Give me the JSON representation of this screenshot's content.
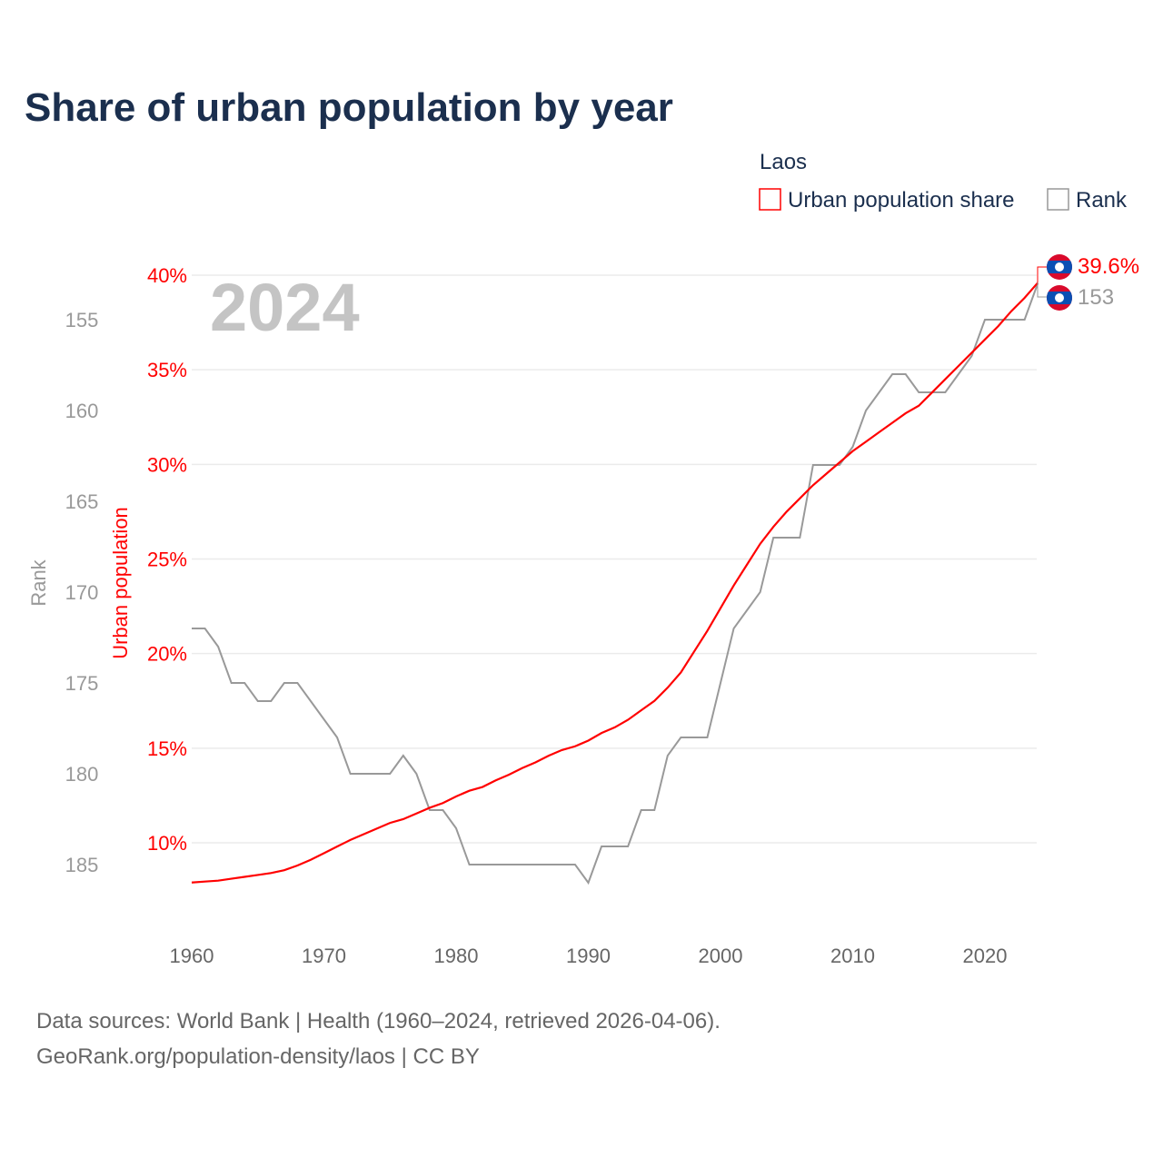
{
  "title": "Share of urban population by year",
  "legend": {
    "heading": "Laos",
    "items": [
      {
        "label": "Urban population share",
        "color": "#ff0000"
      },
      {
        "label": "Rank",
        "color": "#999999"
      }
    ]
  },
  "watermark_year": "2024",
  "footer": {
    "line1": "Data sources: World Bank | Health (1960–2024, retrieved 2026-04-06).",
    "line2": "GeoRank.org/population-density/laos | CC BY"
  },
  "end_labels": {
    "share": "39.6%",
    "rank": "153",
    "flag_icon": "laos-flag-icon"
  },
  "colors": {
    "title": "#1b2f4e",
    "share": "#ff0000",
    "rank": "#999999",
    "grid": "#ebebeb",
    "watermark": "#c4c4c4",
    "footer": "#666666"
  },
  "chart_data": {
    "type": "line",
    "title": "Share of urban population by year",
    "xlabel": "",
    "ylabel_left": "Urban population",
    "ylabel_right_axis": "Rank",
    "xlim": [
      1960,
      2024
    ],
    "ylim_share": [
      10,
      40
    ],
    "ylim_rank": [
      155,
      185
    ],
    "rank_axis_inverted": true,
    "grid": true,
    "legend_position": "top-right",
    "x_ticks": [
      "1960",
      "1970",
      "1980",
      "1990",
      "2000",
      "2010",
      "2020"
    ],
    "share_ticks": [
      "10%",
      "15%",
      "20%",
      "25%",
      "30%",
      "35%",
      "40%"
    ],
    "rank_ticks": [
      "155",
      "160",
      "165",
      "170",
      "175",
      "180",
      "185"
    ],
    "x": [
      1960,
      1961,
      1962,
      1963,
      1964,
      1965,
      1966,
      1967,
      1968,
      1969,
      1970,
      1971,
      1972,
      1973,
      1974,
      1975,
      1976,
      1977,
      1978,
      1979,
      1980,
      1981,
      1982,
      1983,
      1984,
      1985,
      1986,
      1987,
      1988,
      1989,
      1990,
      1991,
      1992,
      1993,
      1994,
      1995,
      1996,
      1997,
      1998,
      1999,
      2000,
      2001,
      2002,
      2003,
      2004,
      2005,
      2006,
      2007,
      2008,
      2009,
      2010,
      2011,
      2012,
      2013,
      2014,
      2015,
      2016,
      2017,
      2018,
      2019,
      2020,
      2021,
      2022,
      2023,
      2024
    ],
    "series": [
      {
        "name": "Urban population share",
        "unit": "%",
        "values": [
          7.9,
          7.95,
          8.0,
          8.1,
          8.2,
          8.3,
          8.4,
          8.55,
          8.8,
          9.1,
          9.45,
          9.8,
          10.15,
          10.45,
          10.75,
          11.05,
          11.25,
          11.55,
          11.85,
          12.1,
          12.45,
          12.75,
          12.95,
          13.3,
          13.6,
          13.95,
          14.25,
          14.6,
          14.9,
          15.1,
          15.4,
          15.8,
          16.1,
          16.5,
          17.0,
          17.5,
          18.2,
          19.0,
          20.1,
          21.2,
          22.4,
          23.6,
          24.7,
          25.8,
          26.7,
          27.5,
          28.2,
          28.9,
          29.5,
          30.1,
          30.7,
          31.2,
          31.7,
          32.2,
          32.7,
          33.1,
          33.8,
          34.5,
          35.2,
          35.9,
          36.6,
          37.3,
          38.1,
          38.8,
          39.6
        ]
      },
      {
        "name": "Rank",
        "unit": "rank",
        "values": [
          172,
          172,
          173,
          175,
          175,
          176,
          176,
          175,
          175,
          176,
          177,
          178,
          180,
          180,
          180,
          180,
          179,
          180,
          182,
          182,
          183,
          185,
          185,
          185,
          185,
          185,
          185,
          185,
          185,
          185,
          186,
          184,
          184,
          184,
          182,
          182,
          179,
          178,
          178,
          178,
          175,
          172,
          171,
          170,
          167,
          167,
          167,
          163,
          163,
          163,
          162,
          160,
          159,
          158,
          158,
          159,
          159,
          159,
          158,
          157,
          155,
          155,
          155,
          155,
          153
        ]
      }
    ]
  }
}
